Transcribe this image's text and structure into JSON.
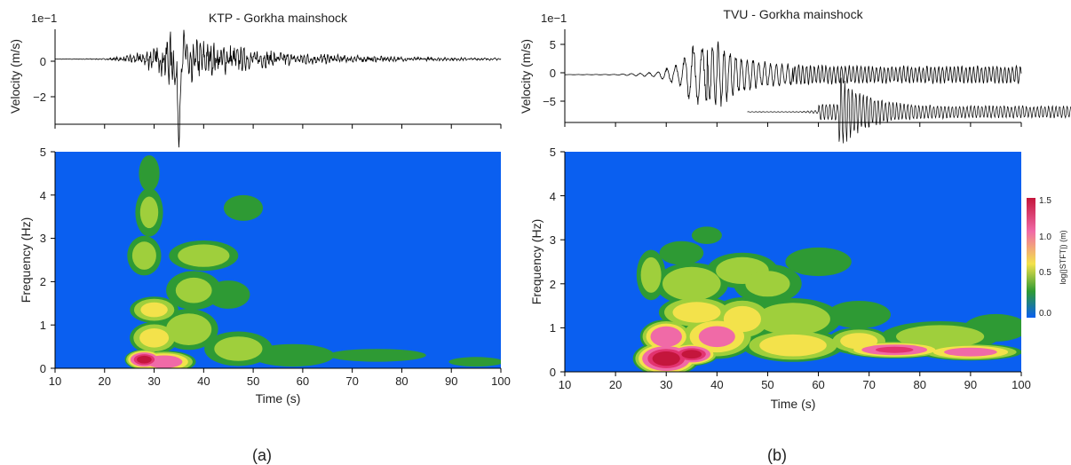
{
  "panels": [
    {
      "caption": "(a)",
      "waveform": {
        "title": "KTP - Gorkha mainshock",
        "ylabel": "Velocity (m/s)",
        "scale_label": "1e−1",
        "yticks": [
          "0",
          "−2"
        ]
      },
      "spectrogram": {
        "ylabel": "Frequency (Hz)",
        "xlabel": "Time (s)",
        "xticks": [
          "10",
          "20",
          "30",
          "40",
          "50",
          "60",
          "70",
          "80",
          "90",
          "100"
        ],
        "yticks": [
          "0",
          "1",
          "2",
          "3",
          "4",
          "5"
        ]
      }
    },
    {
      "caption": "(b)",
      "waveform": {
        "title": "TVU - Gorkha mainshock",
        "ylabel": "Velocity (m/s)",
        "scale_label": "1e−1",
        "yticks": [
          "5",
          "0",
          "−5"
        ]
      },
      "spectrogram": {
        "ylabel": "Frequency (Hz)",
        "xlabel": "Time (s)",
        "xticks": [
          "10",
          "20",
          "30",
          "40",
          "50",
          "60",
          "70",
          "80",
          "90",
          "100"
        ],
        "yticks": [
          "0",
          "1",
          "2",
          "3",
          "4",
          "5"
        ]
      }
    }
  ],
  "colorbar": {
    "label": "log(|STFT|) (m)",
    "ticks": [
      "1.5",
      "1.0",
      "0.5",
      "0.0"
    ],
    "colors": [
      "#0a5ff0",
      "#2e9a34",
      "#f3e24b",
      "#f06aa7",
      "#c4163c"
    ]
  },
  "chart_data": [
    {
      "type": "line",
      "title": "KTP - Gorkha mainshock",
      "xlabel": "",
      "ylabel": "Velocity (m/s)",
      "y_scale": "1e-1",
      "xlim": [
        10,
        100
      ],
      "ylim": [
        -3.5,
        1.6
      ],
      "envelope": {
        "t": [
          10,
          20,
          24,
          28,
          31,
          33,
          35,
          37,
          40,
          45,
          50,
          55,
          60,
          70,
          80,
          90,
          100
        ],
        "amp": [
          0.01,
          0.03,
          0.15,
          0.45,
          0.8,
          1.4,
          1.0,
          1.2,
          1.0,
          0.75,
          0.5,
          0.4,
          0.3,
          0.2,
          0.12,
          0.08,
          0.06
        ]
      },
      "peak": {
        "t": 35,
        "v": -3.3
      }
    },
    {
      "type": "heatmap",
      "title": "",
      "xlabel": "Time (s)",
      "ylabel": "Frequency (Hz)",
      "xlim": [
        10,
        100
      ],
      "ylim": [
        0,
        5
      ],
      "blobs": [
        {
          "t": 28,
          "f": 0.2,
          "rt": 3,
          "rf": 0.18,
          "a": 1.45
        },
        {
          "t": 32,
          "f": 0.15,
          "rt": 5,
          "rf": 0.2,
          "a": 1.1
        },
        {
          "t": 30,
          "f": 0.7,
          "rt": 4,
          "rf": 0.3,
          "a": 0.75
        },
        {
          "t": 30,
          "f": 1.35,
          "rt": 4,
          "rf": 0.25,
          "a": 0.7
        },
        {
          "t": 37,
          "f": 0.9,
          "rt": 5,
          "rf": 0.4,
          "a": 0.55
        },
        {
          "t": 28,
          "f": 2.6,
          "rt": 3,
          "rf": 0.4,
          "a": 0.45
        },
        {
          "t": 29,
          "f": 3.6,
          "rt": 2.5,
          "rf": 0.5,
          "a": 0.4
        },
        {
          "t": 29,
          "f": 4.5,
          "rt": 2,
          "rf": 0.4,
          "a": 0.3
        },
        {
          "t": 40,
          "f": 2.6,
          "rt": 6,
          "rf": 0.3,
          "a": 0.5
        },
        {
          "t": 38,
          "f": 1.8,
          "rt": 5,
          "rf": 0.4,
          "a": 0.4
        },
        {
          "t": 47,
          "f": 0.45,
          "rt": 6,
          "rf": 0.35,
          "a": 0.45
        },
        {
          "t": 45,
          "f": 1.7,
          "rt": 4,
          "rf": 0.3,
          "a": 0.35
        },
        {
          "t": 58,
          "f": 0.3,
          "rt": 8,
          "rf": 0.25,
          "a": 0.3
        },
        {
          "t": 48,
          "f": 3.7,
          "rt": 4,
          "rf": 0.3,
          "a": 0.25
        },
        {
          "t": 75,
          "f": 0.3,
          "rt": 10,
          "rf": 0.15,
          "a": 0.25
        },
        {
          "t": 95,
          "f": 0.15,
          "rt": 6,
          "rf": 0.12,
          "a": 0.2
        }
      ]
    },
    {
      "type": "line",
      "title": "TVU - Gorkha mainshock",
      "xlabel": "",
      "ylabel": "Velocity (m/s)",
      "y_scale": "1e-1",
      "xlim": [
        10,
        100
      ],
      "ylim": [
        -9.5,
        9
      ],
      "envelope": {
        "t": [
          10,
          20,
          28,
          33,
          35,
          37,
          40,
          44,
          50,
          60,
          70,
          80,
          90,
          100
        ],
        "amp": [
          0.02,
          0.05,
          0.5,
          2.5,
          6.5,
          5.5,
          7.0,
          4.0,
          2.5,
          2.0,
          1.8,
          1.8,
          1.8,
          1.8
        ]
      },
      "overlay": {
        "t_start": 46,
        "t_end": 110,
        "baseline": -7.4,
        "peak_t": 64,
        "amp": 6.5
      }
    },
    {
      "type": "heatmap",
      "title": "",
      "xlabel": "Time (s)",
      "ylabel": "Frequency (Hz)",
      "xlim": [
        10,
        100
      ],
      "ylim": [
        0,
        5
      ],
      "blobs": [
        {
          "t": 30,
          "f": 0.3,
          "rt": 5,
          "rf": 0.3,
          "a": 1.5
        },
        {
          "t": 35,
          "f": 0.4,
          "rt": 4,
          "rf": 0.2,
          "a": 1.45
        },
        {
          "t": 30,
          "f": 0.8,
          "rt": 4,
          "rf": 0.3,
          "a": 1.15
        },
        {
          "t": 40,
          "f": 0.8,
          "rt": 6,
          "rf": 0.4,
          "a": 0.95
        },
        {
          "t": 36,
          "f": 1.35,
          "rt": 6,
          "rf": 0.3,
          "a": 0.8
        },
        {
          "t": 45,
          "f": 1.2,
          "rt": 5,
          "rf": 0.4,
          "a": 0.75
        },
        {
          "t": 55,
          "f": 0.6,
          "rt": 8,
          "rf": 0.3,
          "a": 0.85
        },
        {
          "t": 55,
          "f": 1.2,
          "rt": 8,
          "rf": 0.4,
          "a": 0.55
        },
        {
          "t": 75,
          "f": 0.5,
          "rt": 8,
          "rf": 0.15,
          "a": 1.2
        },
        {
          "t": 90,
          "f": 0.45,
          "rt": 8,
          "rf": 0.15,
          "a": 1.0
        },
        {
          "t": 68,
          "f": 0.7,
          "rt": 5,
          "rf": 0.25,
          "a": 0.75
        },
        {
          "t": 84,
          "f": 0.8,
          "rt": 10,
          "rf": 0.3,
          "a": 0.5
        },
        {
          "t": 35,
          "f": 2.0,
          "rt": 6,
          "rf": 0.4,
          "a": 0.6
        },
        {
          "t": 45,
          "f": 2.3,
          "rt": 6,
          "rf": 0.35,
          "a": 0.5
        },
        {
          "t": 50,
          "f": 2.0,
          "rt": 6,
          "rf": 0.4,
          "a": 0.4
        },
        {
          "t": 33,
          "f": 2.7,
          "rt": 4,
          "rf": 0.25,
          "a": 0.35
        },
        {
          "t": 60,
          "f": 2.5,
          "rt": 6,
          "rf": 0.3,
          "a": 0.35
        },
        {
          "t": 27,
          "f": 2.2,
          "rt": 2.5,
          "rf": 0.5,
          "a": 0.45
        },
        {
          "t": 68,
          "f": 1.3,
          "rt": 6,
          "rf": 0.3,
          "a": 0.3
        },
        {
          "t": 38,
          "f": 3.1,
          "rt": 3,
          "rf": 0.2,
          "a": 0.25
        },
        {
          "t": 95,
          "f": 1.0,
          "rt": 6,
          "rf": 0.3,
          "a": 0.3
        }
      ]
    }
  ]
}
